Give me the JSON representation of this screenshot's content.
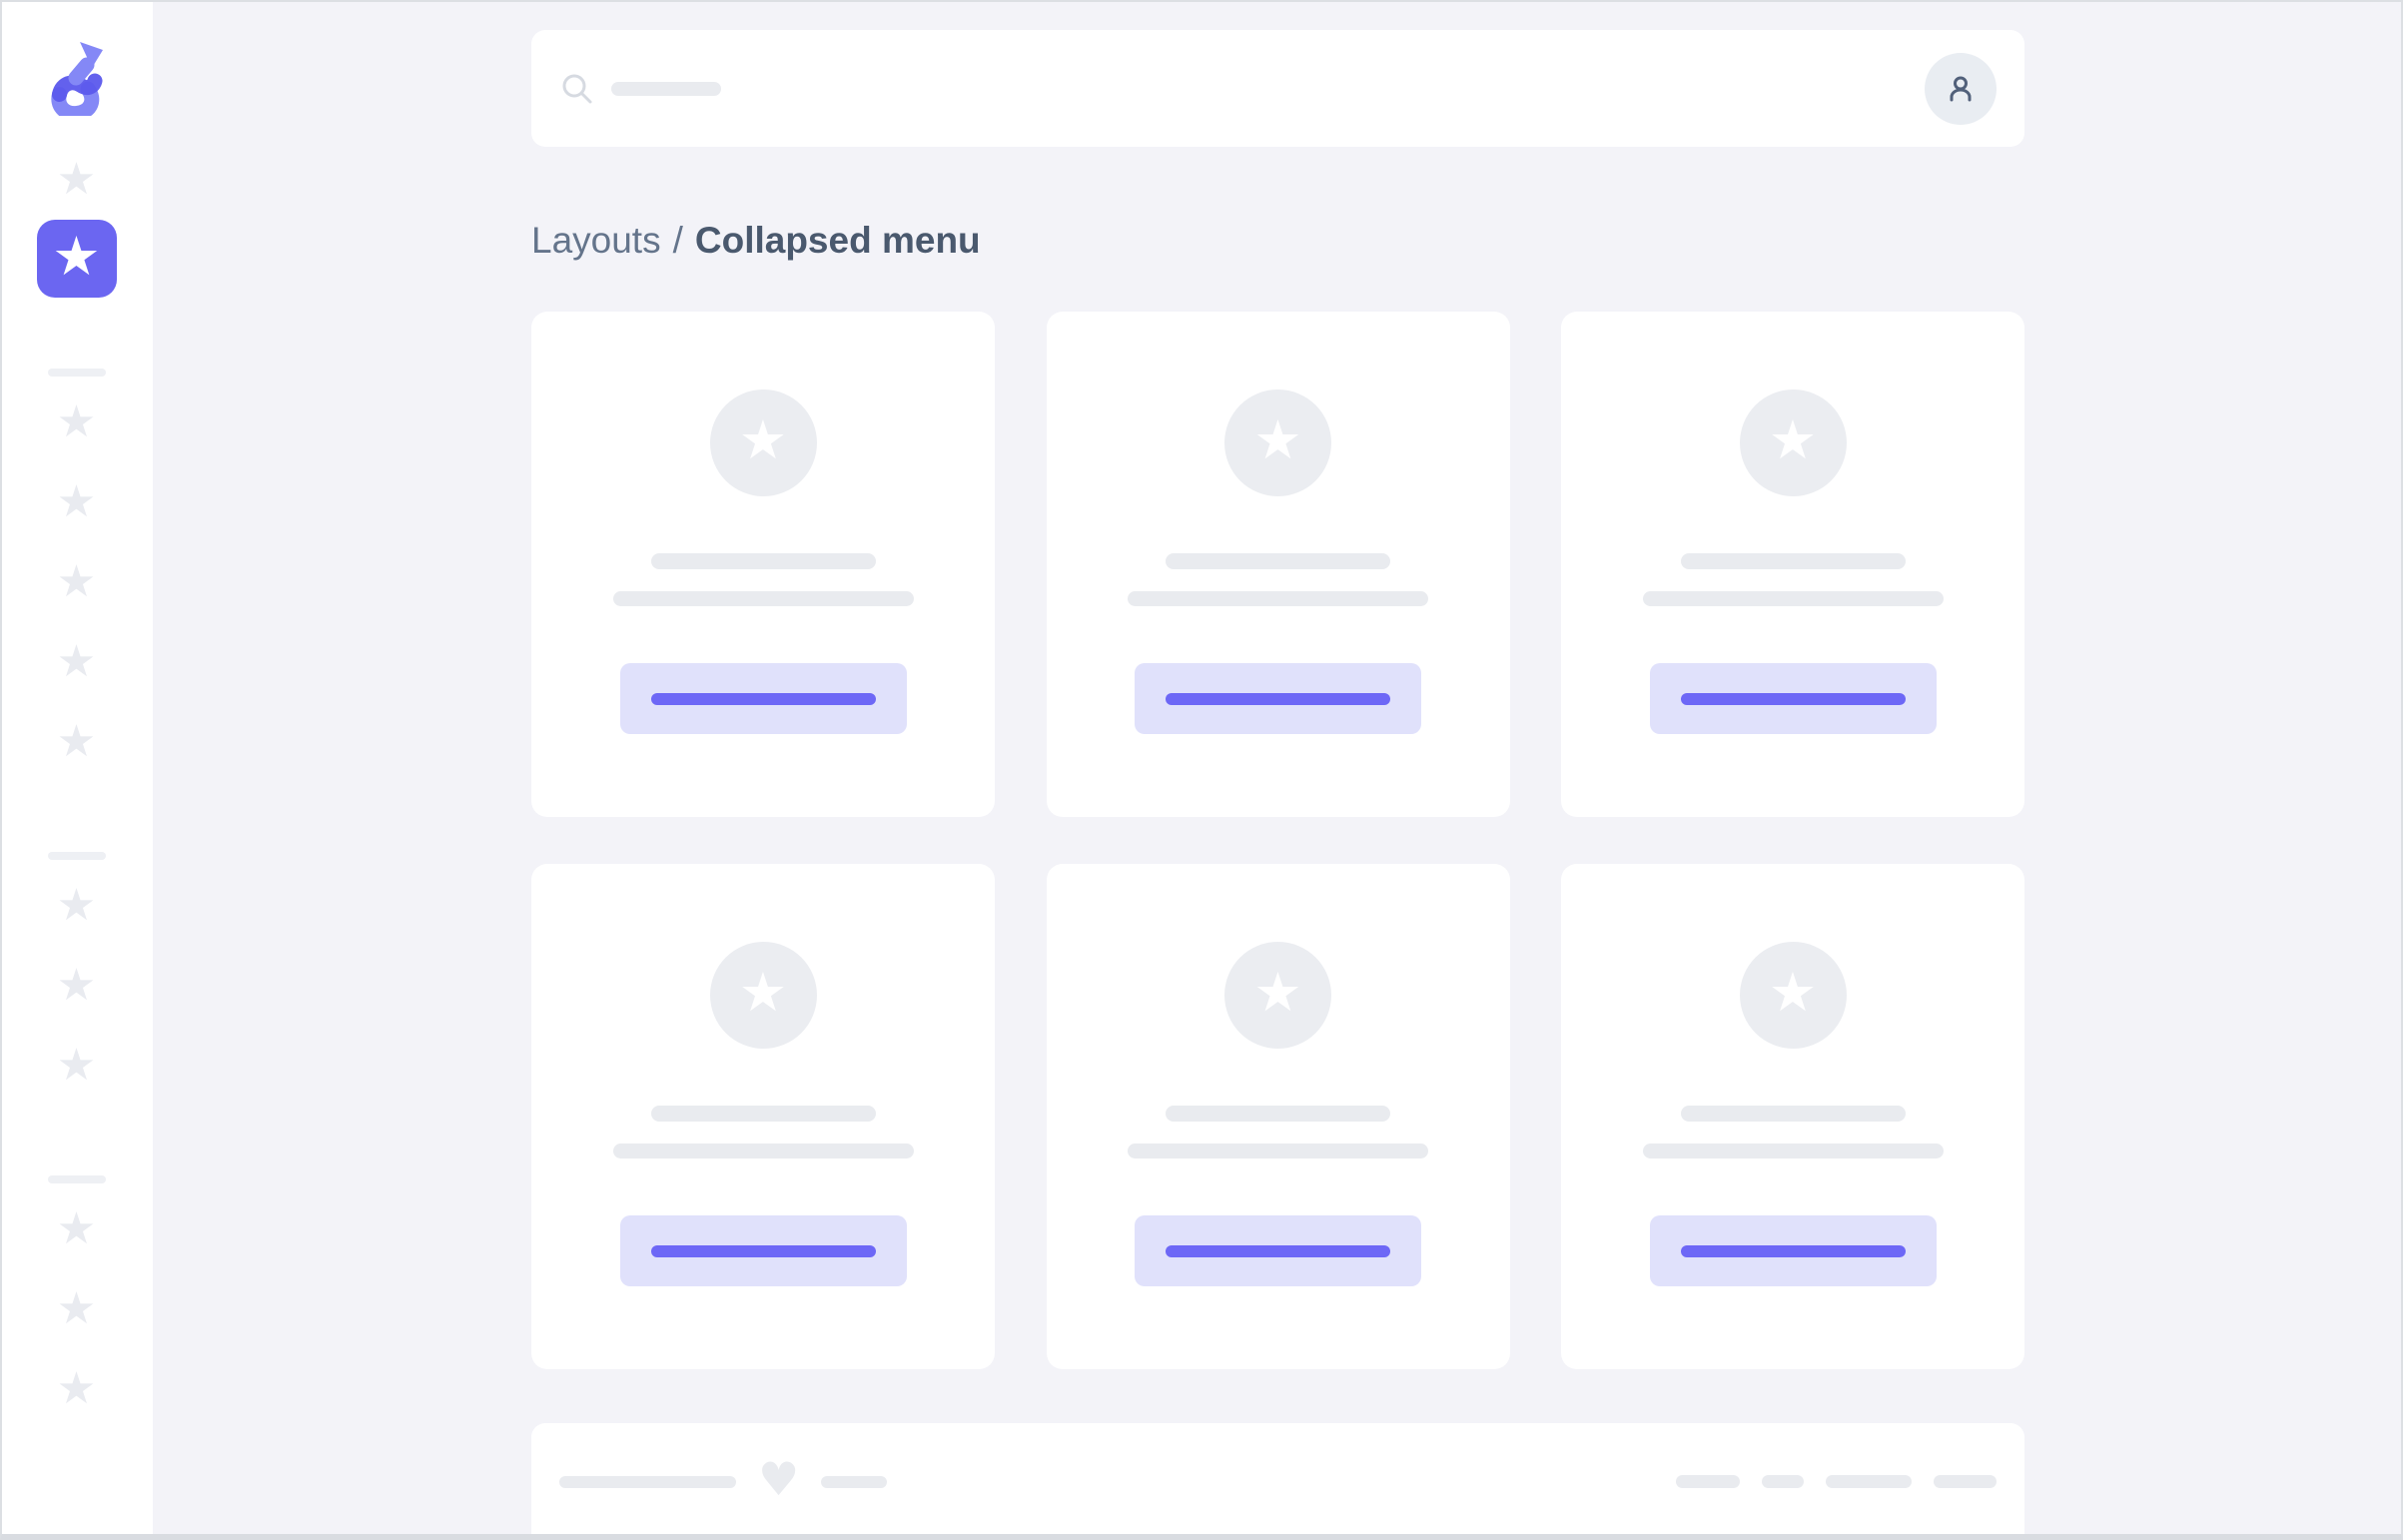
{
  "colors": {
    "accent": "#6b66f1",
    "accent_soft": "#e0e1fb",
    "accent_line": "#6d67f6",
    "logo_light": "#8488f6",
    "logo_dark": "#5b58ec",
    "page_bg": "#f3f3f8",
    "skeleton": "#e9ebef",
    "skeleton_soft": "#ebedf1",
    "divider": "#eef0f4",
    "icon_muted": "#e9ebf0",
    "text_muted": "#64748b",
    "text_dark": "#4a596e",
    "frame_border": "#dcdfe3"
  },
  "icons": {
    "star": "★",
    "heart": "♥"
  },
  "sidebar": {
    "logo_icon": "s-arrow-logo",
    "top_item_icon": "star-icon",
    "active_item_icon": "star-icon",
    "groups": [
      {
        "items": 5
      },
      {
        "items": 3
      },
      {
        "items": 3
      }
    ]
  },
  "header": {
    "search_icon": "search-icon",
    "avatar_icon": "user-icon"
  },
  "breadcrumb": {
    "parent": "Layouts",
    "separator": "/",
    "current": "Collapsed menu"
  },
  "cards": {
    "count": 6,
    "badge_icon": "star-icon"
  },
  "footer": {
    "heart_icon": "heart-icon",
    "right_pill_widths": [
      64,
      42,
      86,
      63
    ]
  }
}
